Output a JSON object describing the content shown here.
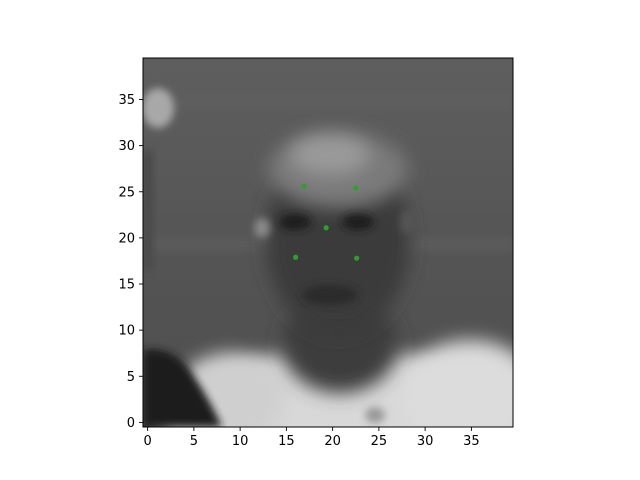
{
  "chart_data": {
    "type": "scatter",
    "title": "",
    "xlabel": "",
    "ylabel": "",
    "background_image": "grayscale-face-photo",
    "xlim": [
      -0.5,
      39.5
    ],
    "ylim": [
      39.5,
      -0.5
    ],
    "x_ticks": [
      0,
      5,
      10,
      15,
      20,
      25,
      30,
      35
    ],
    "x_tick_labels": [
      "0",
      "5",
      "10",
      "15",
      "20",
      "25",
      "30",
      "35"
    ],
    "y_ticks": [
      0,
      5,
      10,
      15,
      20,
      25,
      30,
      35
    ],
    "y_tick_labels": [
      "0",
      "5",
      "10",
      "15",
      "20",
      "25",
      "30",
      "35"
    ],
    "grid": false,
    "series": [
      {
        "marker_color": "#2ca02c",
        "points": [
          {
            "x": 16.0,
            "y": 17.9
          },
          {
            "x": 22.6,
            "y": 17.8
          },
          {
            "x": 19.3,
            "y": 21.1
          },
          {
            "x": 16.9,
            "y": 25.6
          },
          {
            "x": 22.5,
            "y": 25.4
          }
        ]
      }
    ]
  }
}
